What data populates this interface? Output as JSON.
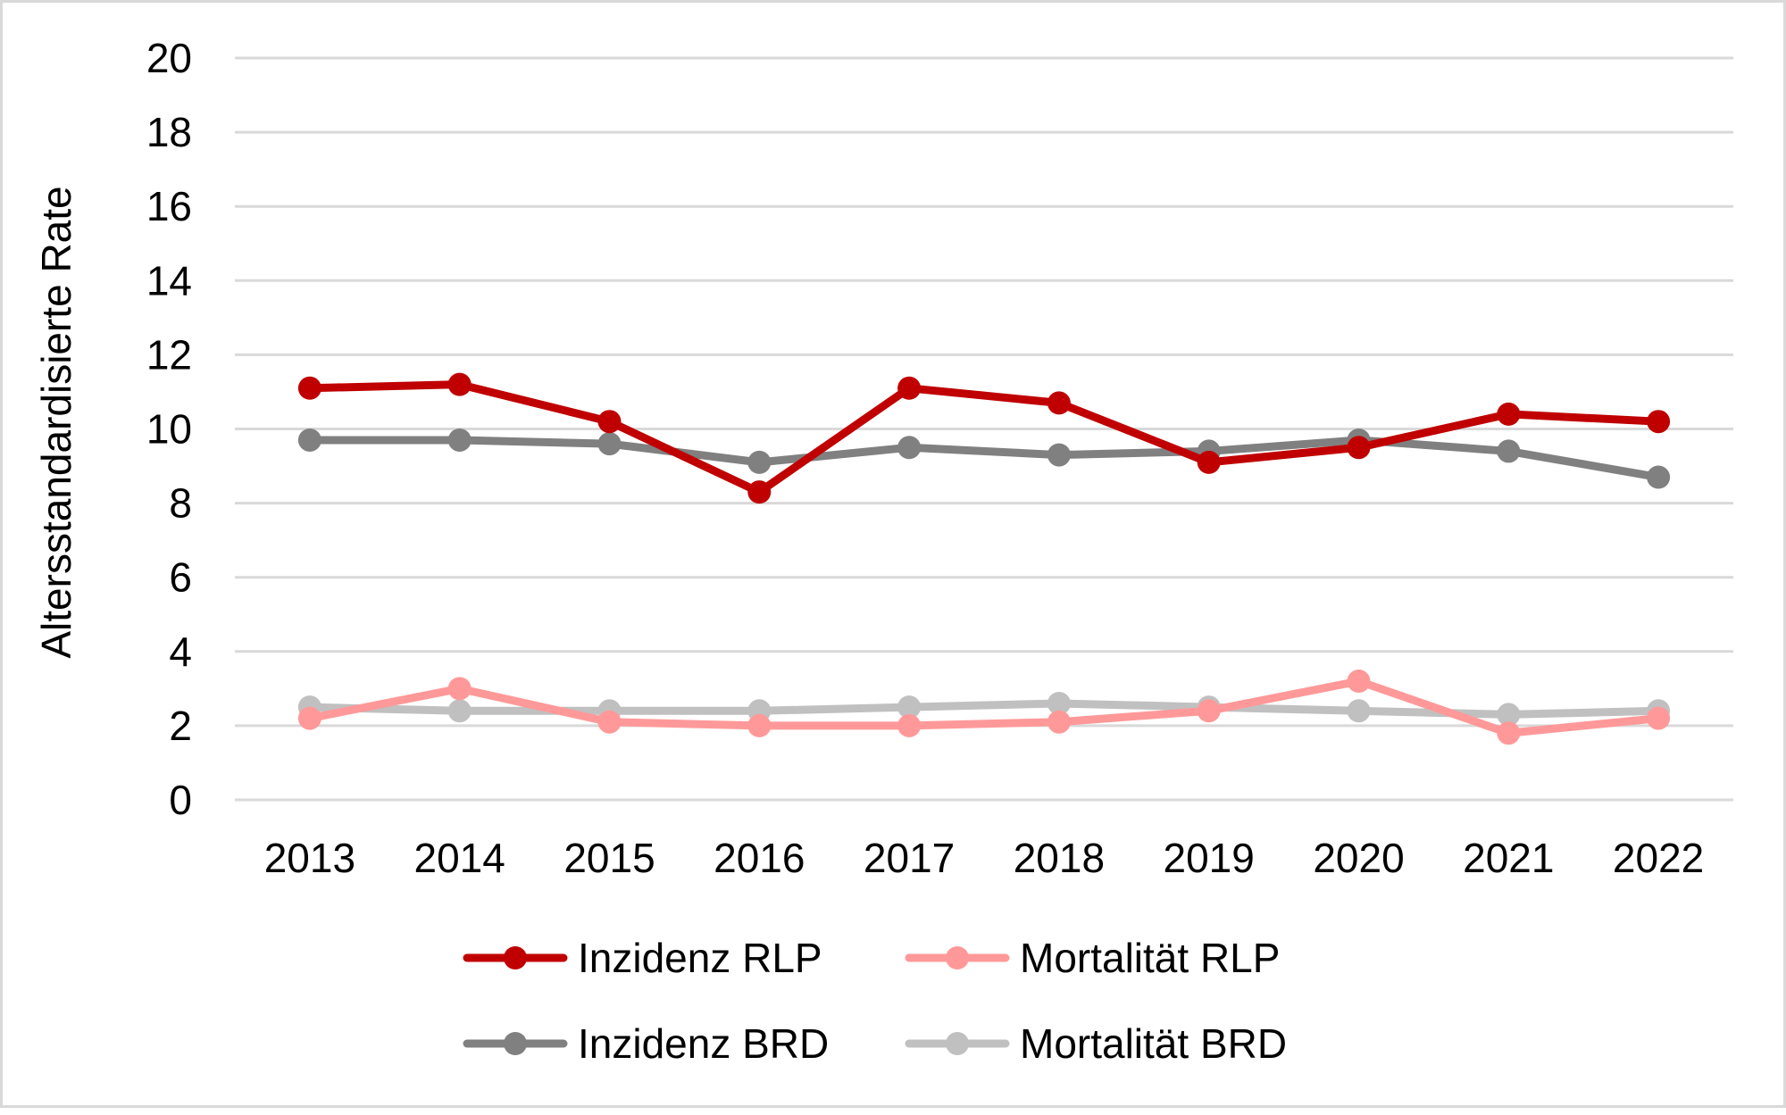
{
  "chart_data": {
    "type": "line",
    "title": "",
    "xlabel": "",
    "ylabel": "Altersstandardisierte Rate",
    "ylim": [
      0,
      20
    ],
    "yticks": [
      0,
      2,
      4,
      6,
      8,
      10,
      12,
      14,
      16,
      18,
      20
    ],
    "grid": true,
    "legend_position": "bottom",
    "categories": [
      "2013",
      "2014",
      "2015",
      "2016",
      "2017",
      "2018",
      "2019",
      "2020",
      "2021",
      "2022"
    ],
    "series": [
      {
        "name": "Inzidenz RLP",
        "color": "#c00000",
        "values": [
          11.1,
          11.2,
          10.2,
          8.3,
          11.1,
          10.7,
          9.1,
          9.5,
          10.4,
          10.2
        ]
      },
      {
        "name": "Mortalität RLP",
        "color": "#ff9999",
        "values": [
          2.2,
          3.0,
          2.1,
          2.0,
          2.0,
          2.1,
          2.4,
          3.2,
          1.8,
          2.2
        ]
      },
      {
        "name": "Inzidenz BRD",
        "color": "#808080",
        "values": [
          9.7,
          9.7,
          9.6,
          9.1,
          9.5,
          9.3,
          9.4,
          9.7,
          9.4,
          8.7
        ]
      },
      {
        "name": "Mortalität BRD",
        "color": "#c0c0c0",
        "values": [
          2.5,
          2.4,
          2.4,
          2.4,
          2.5,
          2.6,
          2.5,
          2.4,
          2.3,
          2.4
        ]
      }
    ]
  }
}
